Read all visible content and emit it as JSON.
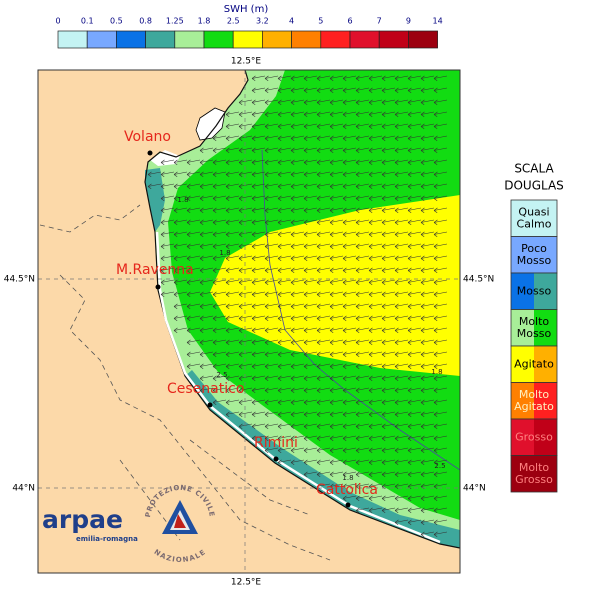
{
  "colorbar": {
    "title": "SWH (m)",
    "ticks": [
      0,
      0.1,
      0.5,
      0.8,
      1.25,
      1.8,
      2.5,
      3.2,
      4,
      5,
      6,
      7,
      9,
      14
    ],
    "colors": [
      "#c4f3f3",
      "#78a8ff",
      "#0a72e6",
      "#3ea89c",
      "#a8ee98",
      "#12dc12",
      "#ffff00",
      "#ffb000",
      "#ff8000",
      "#ff2020",
      "#e0102c",
      "#c00018",
      "#9c0010"
    ]
  },
  "map": {
    "lon_label_top": "12.5°E",
    "lon_label_bottom": "12.5°E",
    "lat_labels_left": [
      "44.5°N",
      "44°N"
    ],
    "lat_labels_right": [
      "44.5°N",
      "44°N"
    ],
    "cities": [
      "Volano",
      "M.Ravenna",
      "Cesenatico",
      "Rimini",
      "Cattolica"
    ],
    "contour_labels": [
      "1.8",
      "1.8",
      "2.5",
      "1.8",
      "2.5",
      "1.8"
    ]
  },
  "legend": {
    "title": [
      "SCALA",
      "DOUGLAS"
    ],
    "entries": [
      {
        "lines": [
          "Quasi",
          "Calmo"
        ],
        "colors": [
          "#c4f3f3"
        ]
      },
      {
        "lines": [
          "Poco",
          "Mosso"
        ],
        "colors": [
          "#78a8ff"
        ]
      },
      {
        "lines": [
          "Mosso"
        ],
        "colors": [
          "#0a72e6",
          "#3ea89c"
        ]
      },
      {
        "lines": [
          "Molto",
          "Mosso"
        ],
        "colors": [
          "#a8ee98",
          "#12dc12"
        ]
      },
      {
        "lines": [
          "Agitato"
        ],
        "colors": [
          "#ffff00",
          "#ffb000"
        ]
      },
      {
        "lines": [
          "Molto",
          "Agitato"
        ],
        "colors": [
          "#ff8000",
          "#ff2020"
        ]
      },
      {
        "lines": [
          "Grosso"
        ],
        "colors": [
          "#e0102c",
          "#c00018"
        ]
      },
      {
        "lines": [
          "Molto",
          "Grosso"
        ],
        "colors": [
          "#9c0010"
        ]
      }
    ]
  },
  "logo": {
    "name": "arpae",
    "region": "emilia-romagna",
    "ring_top": "PROTEZIONE CIVILE",
    "ring_bottom": "NAZIONALE"
  }
}
